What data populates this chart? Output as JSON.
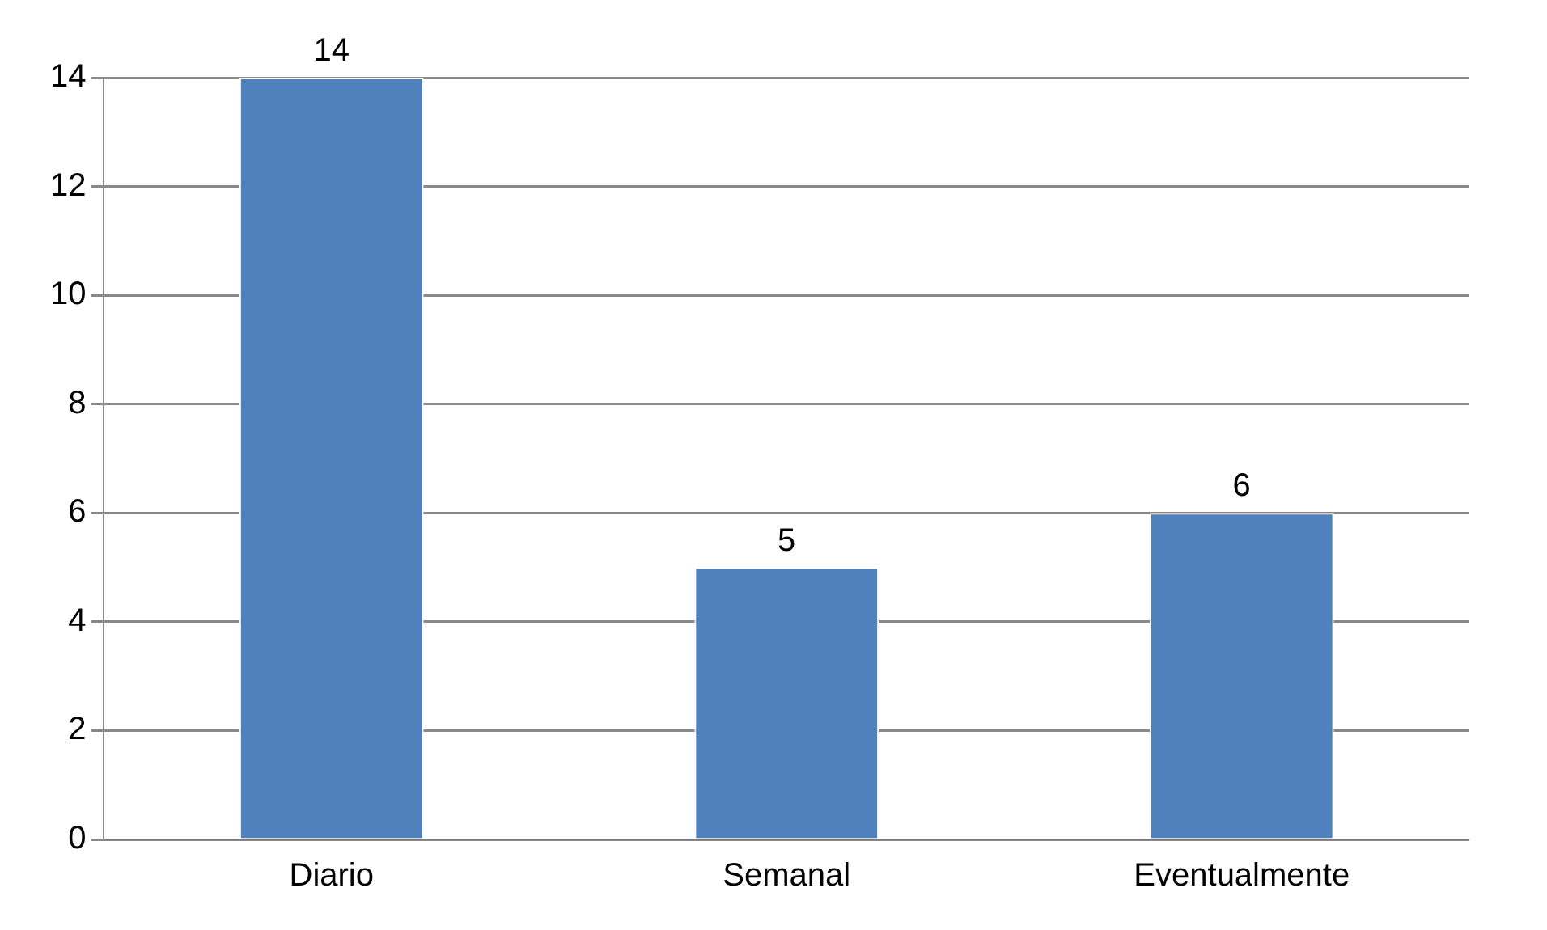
{
  "chart_data": {
    "type": "bar",
    "categories": [
      "Diario",
      "Semanal",
      "Eventualmente"
    ],
    "values": [
      14,
      5,
      6
    ],
    "color": "#4f81bd",
    "ylim": [
      0,
      14
    ],
    "yticks": [
      0,
      2,
      4,
      6,
      8,
      10,
      12,
      14
    ],
    "grid": "y",
    "data_labels": true
  }
}
